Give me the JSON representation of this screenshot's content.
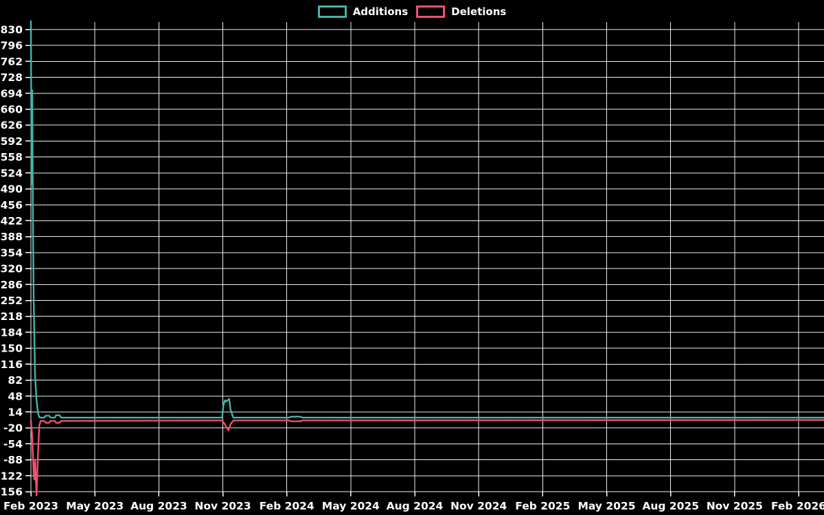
{
  "chart_data": {
    "type": "line",
    "title": "",
    "background": "#000000",
    "grid": true,
    "grid_color": "#f0f0f0",
    "text_color": "#ffffff",
    "legend_position": "top-center",
    "legend": [
      {
        "label": "Additions",
        "color": "#45b4ab"
      },
      {
        "label": "Deletions",
        "color": "#f0516f"
      }
    ],
    "x_axis": {
      "tick_labels": [
        "Feb 2023",
        "May 2023",
        "Aug 2023",
        "Nov 2023",
        "Feb 2024",
        "May 2024",
        "Aug 2024",
        "Nov 2024",
        "Feb 2025",
        "May 2025",
        "Aug 2025",
        "Nov 2025",
        "Feb 2026"
      ],
      "unit": "days since first point (x values below)"
    },
    "y_axis": {
      "ticks": [
        830,
        796,
        762,
        728,
        694,
        660,
        626,
        592,
        558,
        524,
        490,
        456,
        422,
        388,
        354,
        320,
        286,
        252,
        218,
        184,
        150,
        116,
        82,
        48,
        14,
        -20,
        -54,
        -88,
        -122,
        -156
      ],
      "gridline_range": [
        -156,
        830
      ]
    },
    "ylim": [
      -164,
      848
    ],
    "series": [
      {
        "name": "Additions",
        "color": "#45b4ab",
        "points": [
          [
            0,
            848
          ],
          [
            1,
            500
          ],
          [
            2,
            700
          ],
          [
            3,
            400
          ],
          [
            4,
            250
          ],
          [
            5,
            170
          ],
          [
            6,
            90
          ],
          [
            8,
            40
          ],
          [
            10,
            12
          ],
          [
            12,
            3
          ],
          [
            14,
            2
          ],
          [
            19,
            2
          ],
          [
            21,
            6
          ],
          [
            26,
            6
          ],
          [
            28,
            2
          ],
          [
            34,
            2
          ],
          [
            36,
            7
          ],
          [
            41,
            7
          ],
          [
            43,
            2
          ],
          [
            270,
            2
          ],
          [
            273,
            2
          ],
          [
            275,
            29
          ],
          [
            277,
            39
          ],
          [
            279,
            36
          ],
          [
            283,
            42
          ],
          [
            285,
            19
          ],
          [
            289,
            2
          ],
          [
            368,
            2
          ],
          [
            372,
            4
          ],
          [
            384,
            4
          ],
          [
            388,
            2
          ],
          [
            1132,
            2
          ]
        ]
      },
      {
        "name": "Deletions",
        "color": "#f0516f",
        "points": [
          [
            0,
            -3
          ],
          [
            2,
            -40
          ],
          [
            4,
            -120
          ],
          [
            5,
            -130
          ],
          [
            6,
            -88
          ],
          [
            8,
            -164
          ],
          [
            10,
            -80
          ],
          [
            12,
            -15
          ],
          [
            14,
            -5
          ],
          [
            19,
            -5
          ],
          [
            21,
            -9
          ],
          [
            26,
            -9
          ],
          [
            28,
            -5
          ],
          [
            34,
            -5
          ],
          [
            36,
            -9
          ],
          [
            41,
            -9
          ],
          [
            43,
            -5
          ],
          [
            270,
            -4
          ],
          [
            273,
            -4
          ],
          [
            276,
            -10
          ],
          [
            279,
            -18
          ],
          [
            282,
            -25
          ],
          [
            285,
            -12
          ],
          [
            289,
            -4
          ],
          [
            368,
            -4
          ],
          [
            372,
            -6
          ],
          [
            384,
            -6
          ],
          [
            388,
            -4
          ],
          [
            1132,
            -3
          ]
        ]
      }
    ]
  }
}
